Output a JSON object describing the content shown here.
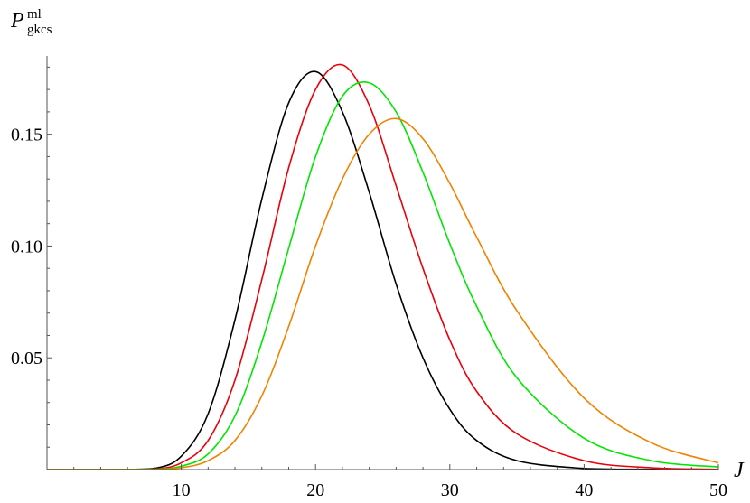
{
  "chart_data": {
    "type": "line",
    "title": "",
    "xlabel": "J",
    "ylabel": {
      "main": "P",
      "superscript": "ml",
      "subscript": "gkcs"
    },
    "xlim": [
      0,
      50
    ],
    "ylim": [
      0,
      0.185
    ],
    "x_ticks": [
      {
        "value": 10,
        "label": "10"
      },
      {
        "value": 20,
        "label": "20"
      },
      {
        "value": 30,
        "label": "30"
      },
      {
        "value": 40,
        "label": "40"
      },
      {
        "value": 50,
        "label": "50"
      }
    ],
    "y_ticks": [
      {
        "value": 0.05,
        "label": "0.05"
      },
      {
        "value": 0.1,
        "label": "0.10"
      },
      {
        "value": 0.15,
        "label": "0.15"
      }
    ],
    "grid": false,
    "legend": "none",
    "series": [
      {
        "color": "#000000",
        "peak_x": 20.0,
        "peak_y": 0.178,
        "x": [
          0,
          5,
          8,
          10,
          12,
          14,
          16,
          18,
          20,
          22,
          24,
          26,
          28,
          30,
          32,
          35,
          40,
          45,
          50
        ],
        "y": [
          0,
          0,
          0.0005,
          0.006,
          0.025,
          0.067,
          0.121,
          0.164,
          0.178,
          0.16,
          0.124,
          0.083,
          0.05,
          0.027,
          0.013,
          0.004,
          0.0005,
          0.0001,
          0
        ]
      },
      {
        "color": "#e8000b",
        "peak_x": 22.2,
        "peak_y": 0.181,
        "x": [
          0,
          5,
          8,
          10,
          12,
          14,
          16,
          18,
          20,
          22,
          24,
          26,
          28,
          30,
          32,
          35,
          40,
          45,
          50
        ],
        "y": [
          0,
          0,
          0.0002,
          0.003,
          0.013,
          0.04,
          0.085,
          0.135,
          0.17,
          0.181,
          0.163,
          0.127,
          0.09,
          0.058,
          0.035,
          0.016,
          0.004,
          0.0008,
          0.0001
        ]
      },
      {
        "color": "#00e600",
        "peak_x": 24.6,
        "peak_y": 0.174,
        "x": [
          0,
          5,
          8,
          10,
          12,
          14,
          16,
          18,
          20,
          22,
          24,
          26,
          28,
          30,
          32,
          35,
          40,
          45,
          50
        ],
        "y": [
          0,
          0,
          0.0001,
          0.0015,
          0.007,
          0.024,
          0.057,
          0.099,
          0.14,
          0.167,
          0.173,
          0.16,
          0.133,
          0.101,
          0.073,
          0.041,
          0.014,
          0.004,
          0.0012
        ]
      },
      {
        "color": "#ef8200",
        "peak_x": 26.6,
        "peak_y": 0.157,
        "x": [
          0,
          5,
          8,
          10,
          12,
          14,
          16,
          18,
          20,
          22,
          24,
          26,
          28,
          30,
          32,
          35,
          40,
          45,
          50
        ],
        "y": [
          0,
          0,
          0,
          0.0008,
          0.004,
          0.013,
          0.033,
          0.064,
          0.1,
          0.13,
          0.15,
          0.157,
          0.148,
          0.128,
          0.104,
          0.071,
          0.032,
          0.012,
          0.003
        ]
      }
    ]
  }
}
